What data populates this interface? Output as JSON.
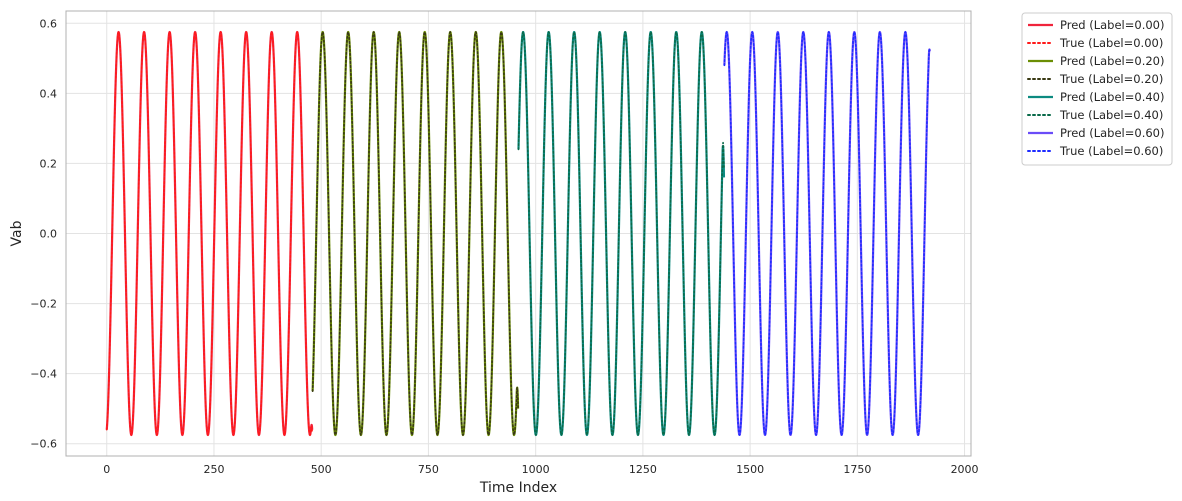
{
  "chart_data": {
    "type": "line",
    "title": "",
    "xlabel": "Time Index",
    "ylabel": "Vab",
    "xlim": [
      -95,
      2015
    ],
    "ylim": [
      -0.635,
      0.635
    ],
    "xticks": [
      0,
      250,
      500,
      750,
      1000,
      1250,
      1500,
      1750,
      2000
    ],
    "xtick_labels": [
      "0",
      "250",
      "500",
      "750",
      "1000",
      "1250",
      "1500",
      "1750",
      "2000"
    ],
    "yticks": [
      -0.6,
      -0.4,
      -0.2,
      0.0,
      0.2,
      0.4,
      0.6
    ],
    "ytick_labels": [
      "−0.6",
      "−0.4",
      "−0.2",
      "0.0",
      "0.2",
      "0.4",
      "0.6"
    ],
    "grid": true,
    "legend_placement": "outside top-right",
    "waveform": {
      "amplitude": 0.575,
      "period_samples": 59.5,
      "samples_per_segment": 480
    },
    "series": [
      {
        "name": "Pred (Label=0.00)",
        "kind": "pred",
        "segment": [
          0,
          480
        ],
        "color": "#f0243c",
        "style": "solid",
        "start_value": -0.56,
        "end_value": -0.56
      },
      {
        "name": "True (Label=0.00)",
        "kind": "true",
        "segment": [
          0,
          480
        ],
        "color": "#ff1a1a",
        "style": "dotted",
        "start_value": -0.56,
        "end_value": -0.57
      },
      {
        "name": "Pred (Label=0.20)",
        "kind": "pred",
        "segment": [
          480,
          960
        ],
        "color": "#6b8e04",
        "style": "solid",
        "start_value": -0.45,
        "end_value": -0.5
      },
      {
        "name": "True (Label=0.20)",
        "kind": "true",
        "segment": [
          480,
          960
        ],
        "color": "#3a3a14",
        "style": "dotted",
        "start_value": -0.45,
        "end_value": -0.5
      },
      {
        "name": "Pred (Label=0.40)",
        "kind": "pred",
        "segment": [
          960,
          1440
        ],
        "color": "#0c8a80",
        "style": "solid",
        "start_value": 0.24,
        "end_value": 0.16
      },
      {
        "name": "True (Label=0.40)",
        "kind": "true",
        "segment": [
          960,
          1440
        ],
        "color": "#0a6a4a",
        "style": "dotted",
        "start_value": 0.24,
        "end_value": 0.19
      },
      {
        "name": "Pred (Label=0.60)",
        "kind": "pred",
        "segment": [
          1440,
          1920
        ],
        "color": "#6a4cf8",
        "style": "solid",
        "start_value": 0.48,
        "end_value": 0.52
      },
      {
        "name": "True (Label=0.60)",
        "kind": "true",
        "segment": [
          1440,
          1920
        ],
        "color": "#1f2cff",
        "style": "dotted",
        "start_value": 0.48,
        "end_value": 0.52
      }
    ]
  }
}
